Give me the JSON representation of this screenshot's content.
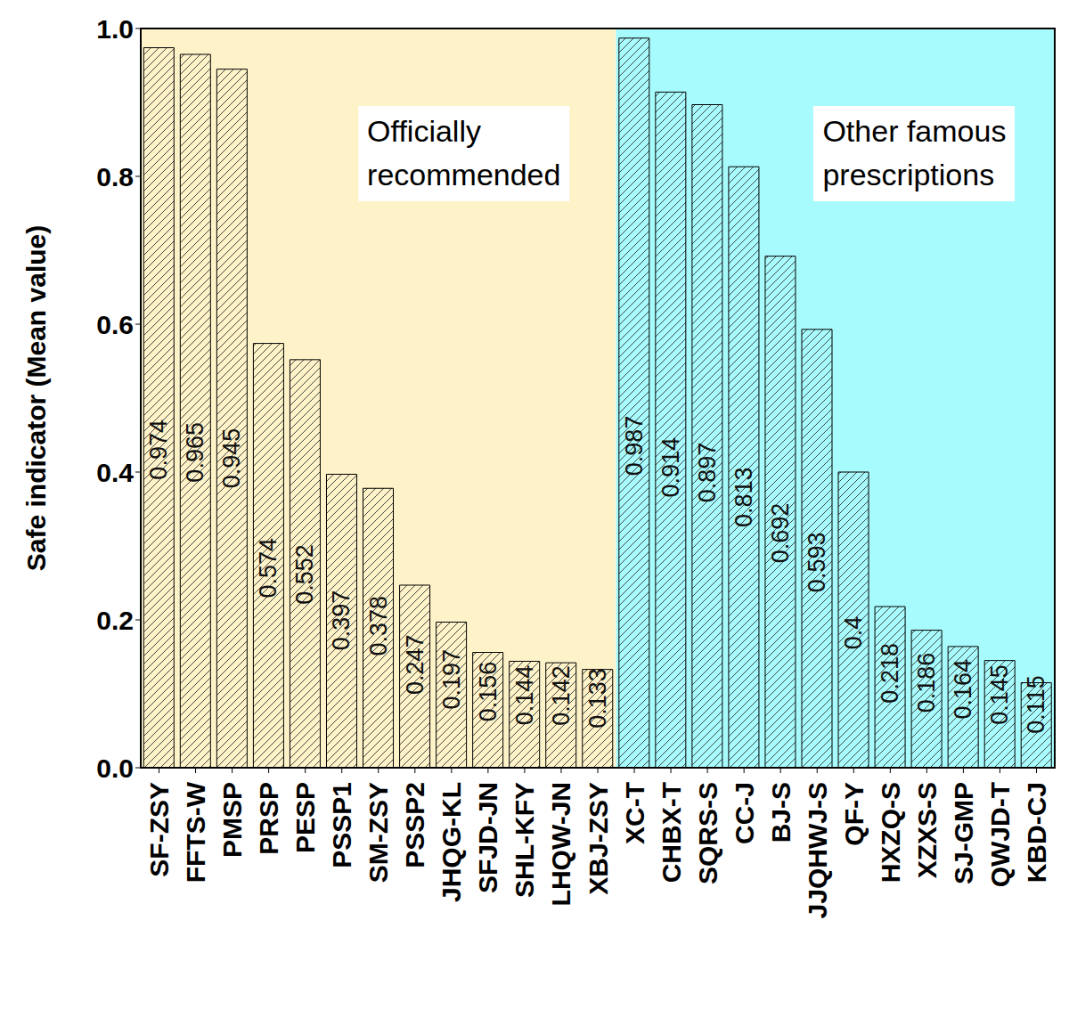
{
  "chart_data": {
    "type": "bar",
    "y_label": "Safe indicator (Mean value)",
    "categories": [
      "SF-ZSY",
      "FFTS-W",
      "PMSP",
      "PRSP",
      "PESP",
      "PSSP1",
      "SM-ZSY",
      "PSSP2",
      "JHQG-KL",
      "SFJD-JN",
      "SHL-KFY",
      "LHQW-JN",
      "XBJ-ZSY",
      "XC-T",
      "CHBX-T",
      "SQRS-S",
      "CC-J",
      "BJ-S",
      "JJQHWJ-S",
      "QF-Y",
      "HXZQ-S",
      "XZXS-S",
      "SJ-GMP",
      "QWJD-T",
      "KBD-CJ"
    ],
    "series": [
      {
        "name": "Officially\nrecommended",
        "color": "#fdf2c8",
        "values": [
          0.974,
          0.965,
          0.945,
          0.574,
          0.552,
          0.397,
          0.378,
          0.247,
          0.197,
          0.156,
          0.144,
          0.142,
          0.133,
          null,
          null,
          null,
          null,
          null,
          null,
          null,
          null,
          null,
          null,
          null,
          null
        ]
      },
      {
        "name": "Other famous\nprescriptions",
        "color": "#a8fbfd",
        "values": [
          null,
          null,
          null,
          null,
          null,
          null,
          null,
          null,
          null,
          null,
          null,
          null,
          null,
          0.987,
          0.914,
          0.897,
          0.813,
          0.692,
          0.593,
          0.4,
          0.218,
          0.186,
          0.164,
          0.145,
          0.115
        ]
      }
    ],
    "ylim": [
      0,
      1
    ],
    "yticks": [
      {
        "value": 0,
        "label": "0.0"
      },
      0.2,
      0.4,
      0.6,
      0.8,
      {
        "value": 1,
        "label": "1.0"
      }
    ],
    "grid": false,
    "data_labels": true
  }
}
